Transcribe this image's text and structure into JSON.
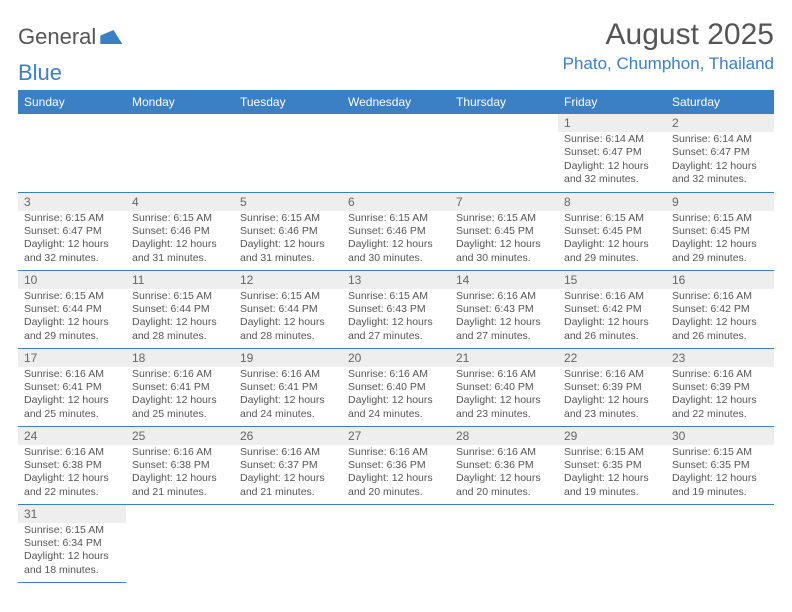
{
  "logo": {
    "word1": "General",
    "word2": "Blue"
  },
  "title": "August 2025",
  "location": "Phato, Chumphon, Thailand",
  "colors": {
    "brand_blue": "#3b7fc4",
    "header_text": "#555555",
    "gray_bg": "#eeeeee",
    "body_text": "#555555",
    "page_bg": "#ffffff"
  },
  "day_headers": [
    "Sunday",
    "Monday",
    "Tuesday",
    "Wednesday",
    "Thursday",
    "Friday",
    "Saturday"
  ],
  "weeks": [
    [
      null,
      null,
      null,
      null,
      null,
      {
        "n": "1",
        "sr": "Sunrise: 6:14 AM",
        "ss": "Sunset: 6:47 PM",
        "d1": "Daylight: 12 hours",
        "d2": "and 32 minutes."
      },
      {
        "n": "2",
        "sr": "Sunrise: 6:14 AM",
        "ss": "Sunset: 6:47 PM",
        "d1": "Daylight: 12 hours",
        "d2": "and 32 minutes."
      }
    ],
    [
      {
        "n": "3",
        "sr": "Sunrise: 6:15 AM",
        "ss": "Sunset: 6:47 PM",
        "d1": "Daylight: 12 hours",
        "d2": "and 32 minutes."
      },
      {
        "n": "4",
        "sr": "Sunrise: 6:15 AM",
        "ss": "Sunset: 6:46 PM",
        "d1": "Daylight: 12 hours",
        "d2": "and 31 minutes."
      },
      {
        "n": "5",
        "sr": "Sunrise: 6:15 AM",
        "ss": "Sunset: 6:46 PM",
        "d1": "Daylight: 12 hours",
        "d2": "and 31 minutes."
      },
      {
        "n": "6",
        "sr": "Sunrise: 6:15 AM",
        "ss": "Sunset: 6:46 PM",
        "d1": "Daylight: 12 hours",
        "d2": "and 30 minutes."
      },
      {
        "n": "7",
        "sr": "Sunrise: 6:15 AM",
        "ss": "Sunset: 6:45 PM",
        "d1": "Daylight: 12 hours",
        "d2": "and 30 minutes."
      },
      {
        "n": "8",
        "sr": "Sunrise: 6:15 AM",
        "ss": "Sunset: 6:45 PM",
        "d1": "Daylight: 12 hours",
        "d2": "and 29 minutes."
      },
      {
        "n": "9",
        "sr": "Sunrise: 6:15 AM",
        "ss": "Sunset: 6:45 PM",
        "d1": "Daylight: 12 hours",
        "d2": "and 29 minutes."
      }
    ],
    [
      {
        "n": "10",
        "sr": "Sunrise: 6:15 AM",
        "ss": "Sunset: 6:44 PM",
        "d1": "Daylight: 12 hours",
        "d2": "and 29 minutes."
      },
      {
        "n": "11",
        "sr": "Sunrise: 6:15 AM",
        "ss": "Sunset: 6:44 PM",
        "d1": "Daylight: 12 hours",
        "d2": "and 28 minutes."
      },
      {
        "n": "12",
        "sr": "Sunrise: 6:15 AM",
        "ss": "Sunset: 6:44 PM",
        "d1": "Daylight: 12 hours",
        "d2": "and 28 minutes."
      },
      {
        "n": "13",
        "sr": "Sunrise: 6:15 AM",
        "ss": "Sunset: 6:43 PM",
        "d1": "Daylight: 12 hours",
        "d2": "and 27 minutes."
      },
      {
        "n": "14",
        "sr": "Sunrise: 6:16 AM",
        "ss": "Sunset: 6:43 PM",
        "d1": "Daylight: 12 hours",
        "d2": "and 27 minutes."
      },
      {
        "n": "15",
        "sr": "Sunrise: 6:16 AM",
        "ss": "Sunset: 6:42 PM",
        "d1": "Daylight: 12 hours",
        "d2": "and 26 minutes."
      },
      {
        "n": "16",
        "sr": "Sunrise: 6:16 AM",
        "ss": "Sunset: 6:42 PM",
        "d1": "Daylight: 12 hours",
        "d2": "and 26 minutes."
      }
    ],
    [
      {
        "n": "17",
        "sr": "Sunrise: 6:16 AM",
        "ss": "Sunset: 6:41 PM",
        "d1": "Daylight: 12 hours",
        "d2": "and 25 minutes."
      },
      {
        "n": "18",
        "sr": "Sunrise: 6:16 AM",
        "ss": "Sunset: 6:41 PM",
        "d1": "Daylight: 12 hours",
        "d2": "and 25 minutes."
      },
      {
        "n": "19",
        "sr": "Sunrise: 6:16 AM",
        "ss": "Sunset: 6:41 PM",
        "d1": "Daylight: 12 hours",
        "d2": "and 24 minutes."
      },
      {
        "n": "20",
        "sr": "Sunrise: 6:16 AM",
        "ss": "Sunset: 6:40 PM",
        "d1": "Daylight: 12 hours",
        "d2": "and 24 minutes."
      },
      {
        "n": "21",
        "sr": "Sunrise: 6:16 AM",
        "ss": "Sunset: 6:40 PM",
        "d1": "Daylight: 12 hours",
        "d2": "and 23 minutes."
      },
      {
        "n": "22",
        "sr": "Sunrise: 6:16 AM",
        "ss": "Sunset: 6:39 PM",
        "d1": "Daylight: 12 hours",
        "d2": "and 23 minutes."
      },
      {
        "n": "23",
        "sr": "Sunrise: 6:16 AM",
        "ss": "Sunset: 6:39 PM",
        "d1": "Daylight: 12 hours",
        "d2": "and 22 minutes."
      }
    ],
    [
      {
        "n": "24",
        "sr": "Sunrise: 6:16 AM",
        "ss": "Sunset: 6:38 PM",
        "d1": "Daylight: 12 hours",
        "d2": "and 22 minutes."
      },
      {
        "n": "25",
        "sr": "Sunrise: 6:16 AM",
        "ss": "Sunset: 6:38 PM",
        "d1": "Daylight: 12 hours",
        "d2": "and 21 minutes."
      },
      {
        "n": "26",
        "sr": "Sunrise: 6:16 AM",
        "ss": "Sunset: 6:37 PM",
        "d1": "Daylight: 12 hours",
        "d2": "and 21 minutes."
      },
      {
        "n": "27",
        "sr": "Sunrise: 6:16 AM",
        "ss": "Sunset: 6:36 PM",
        "d1": "Daylight: 12 hours",
        "d2": "and 20 minutes."
      },
      {
        "n": "28",
        "sr": "Sunrise: 6:16 AM",
        "ss": "Sunset: 6:36 PM",
        "d1": "Daylight: 12 hours",
        "d2": "and 20 minutes."
      },
      {
        "n": "29",
        "sr": "Sunrise: 6:15 AM",
        "ss": "Sunset: 6:35 PM",
        "d1": "Daylight: 12 hours",
        "d2": "and 19 minutes."
      },
      {
        "n": "30",
        "sr": "Sunrise: 6:15 AM",
        "ss": "Sunset: 6:35 PM",
        "d1": "Daylight: 12 hours",
        "d2": "and 19 minutes."
      }
    ],
    [
      {
        "n": "31",
        "sr": "Sunrise: 6:15 AM",
        "ss": "Sunset: 6:34 PM",
        "d1": "Daylight: 12 hours",
        "d2": "and 18 minutes."
      },
      null,
      null,
      null,
      null,
      null,
      null
    ]
  ]
}
